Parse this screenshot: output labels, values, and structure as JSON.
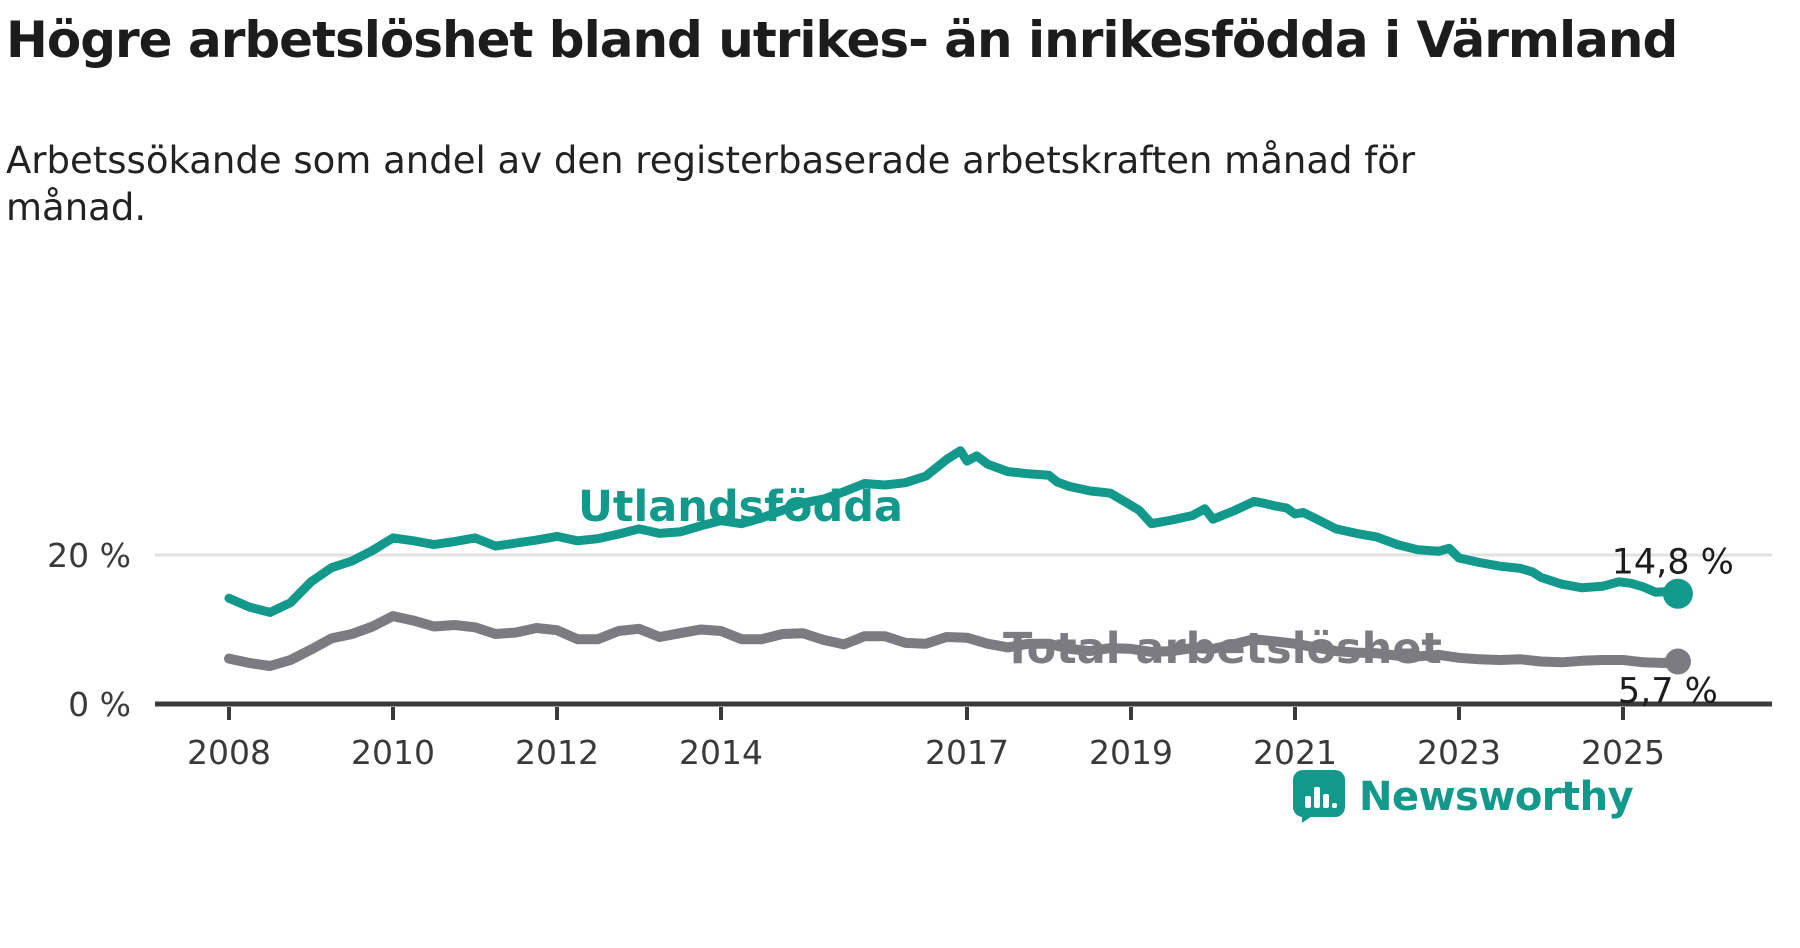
{
  "title": "Högre arbetslöshet bland utrikes- än inrikesfödda i Värmland",
  "subtitle": "Arbetssökande som andel av den registerbaserade arbetskraften månad för månad.",
  "branding": {
    "name": "Newsworthy",
    "color": "#12998b"
  },
  "colors": {
    "accent_teal": "#12998b",
    "line_gray": "#7b7b81",
    "axis": "#3a3a3a",
    "gridline": "#e2e2e2",
    "text": "#1c1c1c"
  },
  "chart_data": {
    "type": "line",
    "title": "Högre arbetslöshet bland utrikes- än inrikesfödda i Värmland",
    "subtitle": "Arbetssökande som andel av den registerbaserade arbetskraften månad för månad.",
    "x_start": 2008,
    "x_end": 2025.67,
    "ylim": [
      0,
      36
    ],
    "grid": "single-line-at-20",
    "x_ticks": [
      2008,
      2010,
      2012,
      2014,
      2017,
      2019,
      2021,
      2023,
      2025
    ],
    "y_ticks": [
      {
        "value": 0,
        "label": "0 %"
      },
      {
        "value": 20,
        "label": "20 %"
      }
    ],
    "series": [
      {
        "name": "Total arbetslöshet",
        "color": "#7b7b81",
        "end_label": "5,7 %",
        "end_value": 5.7,
        "points": [
          [
            2008.0,
            6.1
          ],
          [
            2008.25,
            5.5
          ],
          [
            2008.5,
            5.1
          ],
          [
            2008.75,
            5.9
          ],
          [
            2009.0,
            7.3
          ],
          [
            2009.25,
            8.8
          ],
          [
            2009.5,
            9.4
          ],
          [
            2009.75,
            10.4
          ],
          [
            2010.0,
            11.8
          ],
          [
            2010.25,
            11.2
          ],
          [
            2010.5,
            10.4
          ],
          [
            2010.75,
            10.6
          ],
          [
            2011.0,
            10.3
          ],
          [
            2011.25,
            9.4
          ],
          [
            2011.5,
            9.6
          ],
          [
            2011.75,
            10.2
          ],
          [
            2012.0,
            9.9
          ],
          [
            2012.25,
            8.7
          ],
          [
            2012.5,
            8.7
          ],
          [
            2012.75,
            9.8
          ],
          [
            2013.0,
            10.1
          ],
          [
            2013.25,
            9.0
          ],
          [
            2013.5,
            9.5
          ],
          [
            2013.75,
            10.0
          ],
          [
            2014.0,
            9.8
          ],
          [
            2014.25,
            8.7
          ],
          [
            2014.5,
            8.7
          ],
          [
            2014.75,
            9.4
          ],
          [
            2015.0,
            9.5
          ],
          [
            2015.25,
            8.6
          ],
          [
            2015.5,
            8.0
          ],
          [
            2015.75,
            9.1
          ],
          [
            2016.0,
            9.1
          ],
          [
            2016.25,
            8.2
          ],
          [
            2016.5,
            8.1
          ],
          [
            2016.75,
            9.0
          ],
          [
            2017.0,
            8.9
          ],
          [
            2017.25,
            8.1
          ],
          [
            2017.5,
            7.6
          ],
          [
            2017.75,
            8.1
          ],
          [
            2018.0,
            8.1
          ],
          [
            2018.25,
            7.4
          ],
          [
            2018.5,
            7.1
          ],
          [
            2018.75,
            7.5
          ],
          [
            2019.0,
            7.4
          ],
          [
            2019.25,
            7.0
          ],
          [
            2019.5,
            7.1
          ],
          [
            2019.75,
            7.5
          ],
          [
            2020.0,
            7.4
          ],
          [
            2020.25,
            8.0
          ],
          [
            2020.5,
            8.7
          ],
          [
            2020.75,
            8.4
          ],
          [
            2021.0,
            8.1
          ],
          [
            2021.25,
            7.6
          ],
          [
            2021.5,
            7.1
          ],
          [
            2021.75,
            6.9
          ],
          [
            2022.0,
            6.8
          ],
          [
            2022.25,
            6.5
          ],
          [
            2022.5,
            6.4
          ],
          [
            2022.75,
            6.6
          ],
          [
            2023.0,
            6.2
          ],
          [
            2023.25,
            6.0
          ],
          [
            2023.5,
            5.9
          ],
          [
            2023.75,
            6.0
          ],
          [
            2024.0,
            5.7
          ],
          [
            2024.25,
            5.6
          ],
          [
            2024.5,
            5.8
          ],
          [
            2024.75,
            5.9
          ],
          [
            2025.0,
            5.9
          ],
          [
            2025.25,
            5.6
          ],
          [
            2025.5,
            5.5
          ],
          [
            2025.67,
            5.7
          ]
        ]
      },
      {
        "name": "Utlandsfödda",
        "color": "#12998b",
        "end_label": "14,8 %",
        "end_value": 14.8,
        "points": [
          [
            2008.0,
            14.2
          ],
          [
            2008.25,
            13.0
          ],
          [
            2008.5,
            12.3
          ],
          [
            2008.75,
            13.6
          ],
          [
            2009.0,
            16.4
          ],
          [
            2009.25,
            18.3
          ],
          [
            2009.5,
            19.2
          ],
          [
            2009.75,
            20.6
          ],
          [
            2010.0,
            22.3
          ],
          [
            2010.25,
            21.9
          ],
          [
            2010.5,
            21.4
          ],
          [
            2010.75,
            21.8
          ],
          [
            2011.0,
            22.3
          ],
          [
            2011.25,
            21.2
          ],
          [
            2011.5,
            21.6
          ],
          [
            2011.75,
            22.0
          ],
          [
            2012.0,
            22.5
          ],
          [
            2012.25,
            21.9
          ],
          [
            2012.5,
            22.2
          ],
          [
            2012.75,
            22.8
          ],
          [
            2013.0,
            23.5
          ],
          [
            2013.25,
            22.9
          ],
          [
            2013.5,
            23.1
          ],
          [
            2013.75,
            23.9
          ],
          [
            2014.0,
            24.6
          ],
          [
            2014.25,
            24.2
          ],
          [
            2014.5,
            25.0
          ],
          [
            2014.75,
            26.0
          ],
          [
            2015.0,
            27.0
          ],
          [
            2015.25,
            27.5
          ],
          [
            2015.5,
            28.5
          ],
          [
            2015.75,
            29.6
          ],
          [
            2016.0,
            29.4
          ],
          [
            2016.25,
            29.7
          ],
          [
            2016.5,
            30.6
          ],
          [
            2016.75,
            32.8
          ],
          [
            2016.92,
            34.0
          ],
          [
            2017.0,
            32.6
          ],
          [
            2017.12,
            33.3
          ],
          [
            2017.25,
            32.2
          ],
          [
            2017.5,
            31.2
          ],
          [
            2017.75,
            30.9
          ],
          [
            2018.0,
            30.7
          ],
          [
            2018.1,
            29.8
          ],
          [
            2018.25,
            29.2
          ],
          [
            2018.5,
            28.6
          ],
          [
            2018.75,
            28.3
          ],
          [
            2018.95,
            27.0
          ],
          [
            2019.1,
            26.0
          ],
          [
            2019.25,
            24.2
          ],
          [
            2019.5,
            24.7
          ],
          [
            2019.75,
            25.3
          ],
          [
            2019.9,
            26.2
          ],
          [
            2020.0,
            24.8
          ],
          [
            2020.25,
            25.9
          ],
          [
            2020.5,
            27.2
          ],
          [
            2020.6,
            27.0
          ],
          [
            2020.75,
            26.6
          ],
          [
            2020.9,
            26.3
          ],
          [
            2021.0,
            25.5
          ],
          [
            2021.1,
            25.7
          ],
          [
            2021.25,
            24.9
          ],
          [
            2021.5,
            23.5
          ],
          [
            2021.75,
            22.9
          ],
          [
            2022.0,
            22.4
          ],
          [
            2022.25,
            21.4
          ],
          [
            2022.5,
            20.7
          ],
          [
            2022.75,
            20.5
          ],
          [
            2022.88,
            20.9
          ],
          [
            2023.0,
            19.6
          ],
          [
            2023.25,
            19.0
          ],
          [
            2023.5,
            18.5
          ],
          [
            2023.75,
            18.2
          ],
          [
            2023.9,
            17.7
          ],
          [
            2024.0,
            17.0
          ],
          [
            2024.25,
            16.1
          ],
          [
            2024.5,
            15.6
          ],
          [
            2024.75,
            15.8
          ],
          [
            2024.95,
            16.4
          ],
          [
            2025.1,
            16.2
          ],
          [
            2025.25,
            15.7
          ],
          [
            2025.4,
            15.0
          ],
          [
            2025.55,
            15.1
          ],
          [
            2025.67,
            14.8
          ]
        ]
      }
    ],
    "legend_position": "inline-labels-on-chart"
  }
}
